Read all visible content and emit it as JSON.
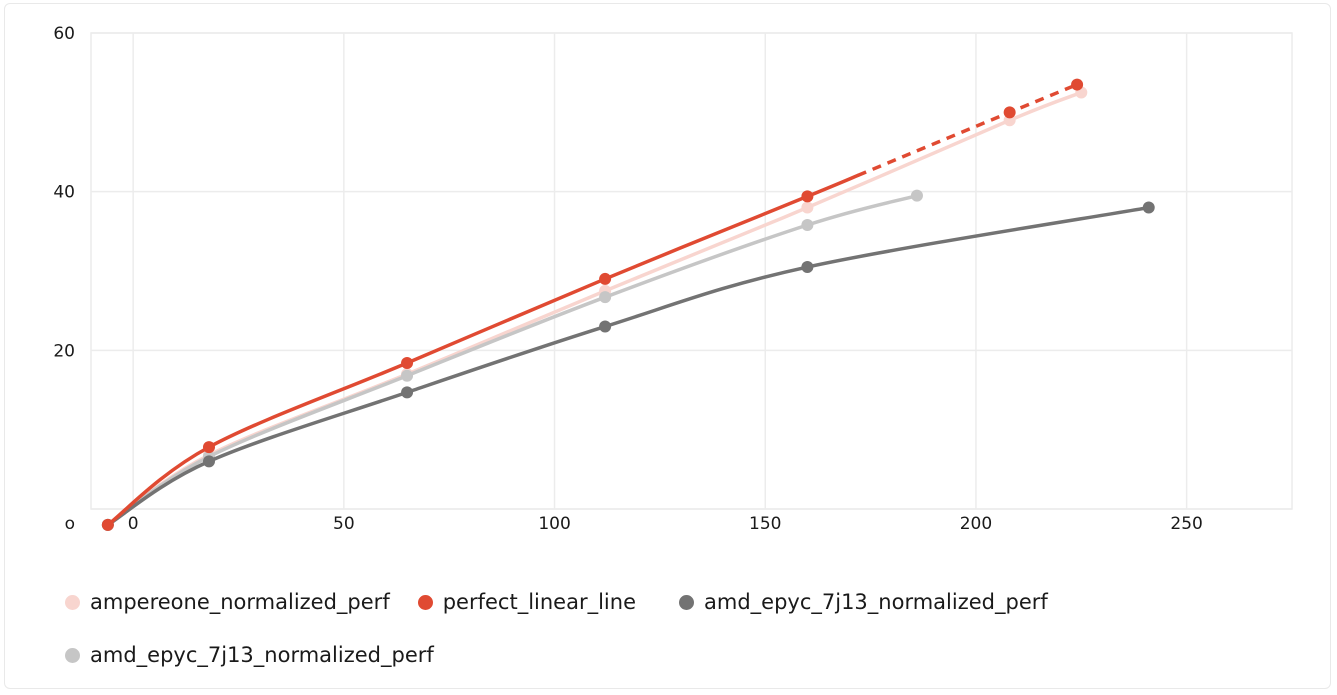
{
  "chart_data": {
    "type": "line",
    "xlim": [
      -10,
      275
    ],
    "ylim": [
      0,
      60
    ],
    "x_ticks": [
      0,
      50,
      100,
      150,
      200,
      250
    ],
    "y_ticks": [
      {
        "value": 0,
        "label": "o"
      },
      {
        "value": 20,
        "label": "20"
      },
      {
        "value": 40,
        "label": "40"
      },
      {
        "value": 60,
        "label": "60"
      }
    ],
    "grid": true,
    "legend_position": "bottom",
    "series": [
      {
        "name": "ampereone_normalized_perf",
        "color": "#f8d5cf",
        "x": [
          -6,
          18,
          65,
          112,
          160,
          208,
          225
        ],
        "y": [
          -2,
          6.8,
          17,
          27.5,
          38,
          49,
          52.5
        ]
      },
      {
        "name": "amd_epyc_7j13_normalized_perf",
        "color": "#c6c6c6",
        "x": [
          -6,
          18,
          65,
          112,
          160,
          186
        ],
        "y": [
          -2,
          6.6,
          16.8,
          26.7,
          35.8,
          39.5
        ]
      },
      {
        "name": "amd_epyc_7j13_normalized_perf",
        "color": "#737373",
        "x": [
          -6,
          18,
          65,
          112,
          160,
          241
        ],
        "y": [
          -2,
          6,
          14.7,
          23,
          30.5,
          38
        ]
      },
      {
        "name": "perfect_linear_line",
        "color": "#e04a32",
        "x": [
          -6,
          18,
          65,
          112,
          160,
          208,
          224
        ],
        "y": [
          -2,
          7.8,
          18.4,
          29,
          39.4,
          50,
          53.5
        ],
        "dashed_from_x": 172
      }
    ],
    "legend_order": [
      0,
      3,
      2,
      1
    ]
  }
}
